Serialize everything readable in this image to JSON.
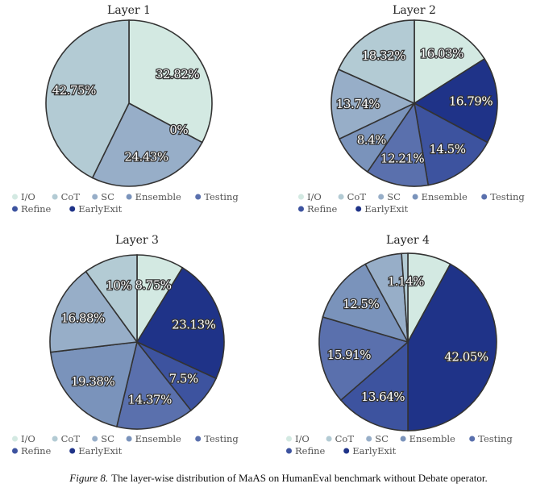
{
  "chart_data": [
    {
      "type": "pie",
      "title": "Layer 1",
      "categories": [
        "I/O",
        "CoT",
        "SC",
        "Ensemble",
        "Testing",
        "Refine",
        "EarlyExit"
      ],
      "values": [
        32.82,
        42.75,
        24.43,
        0,
        0,
        0,
        0
      ],
      "labels": [
        "32.82%",
        "42.75%",
        "24.43%",
        null,
        null,
        null,
        "0%"
      ]
    },
    {
      "type": "pie",
      "title": "Layer 2",
      "categories": [
        "I/O",
        "CoT",
        "SC",
        "Ensemble",
        "Testing",
        "Refine",
        "EarlyExit"
      ],
      "values": [
        16.03,
        18.32,
        13.74,
        8.4,
        12.21,
        14.5,
        16.79
      ],
      "labels": [
        "16.03%",
        "18.32%",
        "13.74%",
        "8.4%",
        "12.21%",
        "14.5%",
        "16.79%"
      ]
    },
    {
      "type": "pie",
      "title": "Layer 3",
      "categories": [
        "I/O",
        "CoT",
        "SC",
        "Ensemble",
        "Testing",
        "Refine",
        "EarlyExit"
      ],
      "values": [
        8.75,
        10,
        16.88,
        19.38,
        14.37,
        7.5,
        23.13
      ],
      "labels": [
        "8.75%",
        "10%",
        "16.88%",
        "19.38%",
        "14.37%",
        "7.5%",
        "23.13%"
      ]
    },
    {
      "type": "pie",
      "title": "Layer 4",
      "categories": [
        "I/O",
        "CoT",
        "SC",
        "Ensemble",
        "Testing",
        "Refine",
        "EarlyExit"
      ],
      "values": [
        7.95,
        1.14,
        6.82,
        12.5,
        15.91,
        13.64,
        42.05
      ],
      "labels": [
        null,
        "1.14%",
        null,
        "12.5%",
        "15.91%",
        "13.64%",
        "42.05%"
      ]
    }
  ],
  "legend": [
    "I/O",
    "CoT",
    "SC",
    "Ensemble",
    "Testing",
    "Refine",
    "EarlyExit"
  ],
  "colors": [
    "#d3e9e2",
    "#b3cbd4",
    "#97aec8",
    "#7a93bb",
    "#5a70ad",
    "#3d539f",
    "#1f3388"
  ],
  "caption": {
    "label": "Figure 8.",
    "text": "The layer-wise distribution of MaAS on HumanEval benchmark without Debate operator."
  }
}
